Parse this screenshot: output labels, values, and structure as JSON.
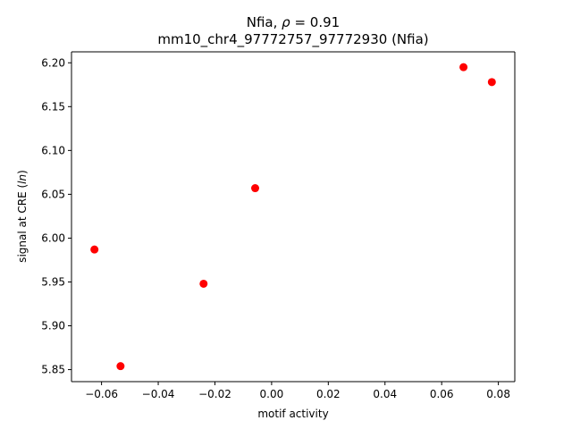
{
  "chart_data": {
    "type": "scatter",
    "title_line1_prefix": "Nfia, ",
    "title_line1_rho": "ρ",
    "title_line1_value": " = 0.91",
    "title_line2": "mm10_chr4_97772757_97772930 (Nfia)",
    "xlabel": "motif activity",
    "ylabel_prefix": "signal at CRE (",
    "ylabel_italic": "ln",
    "ylabel_suffix": ")",
    "xlim": [
      -0.0706,
      0.0858
    ],
    "ylim": [
      5.8363,
      6.2125
    ],
    "x_ticks": [
      -0.06,
      -0.04,
      -0.02,
      0.0,
      0.02,
      0.04,
      0.06,
      0.08
    ],
    "x_tick_labels": [
      "−0.06",
      "−0.04",
      "−0.02",
      "0.00",
      "0.02",
      "0.04",
      "0.06",
      "0.08"
    ],
    "y_ticks": [
      5.85,
      5.9,
      5.95,
      6.0,
      6.05,
      6.1,
      6.15,
      6.2
    ],
    "y_tick_labels": [
      "5.85",
      "5.90",
      "5.95",
      "6.00",
      "6.05",
      "6.10",
      "6.15",
      "6.20"
    ],
    "grid": false,
    "marker_color": "#ff0000",
    "points": [
      {
        "x": -0.0625,
        "y": 5.987
      },
      {
        "x": -0.0533,
        "y": 5.854
      },
      {
        "x": -0.024,
        "y": 5.948
      },
      {
        "x": -0.0058,
        "y": 6.057
      },
      {
        "x": 0.0677,
        "y": 6.195
      },
      {
        "x": 0.0777,
        "y": 6.178
      }
    ]
  }
}
